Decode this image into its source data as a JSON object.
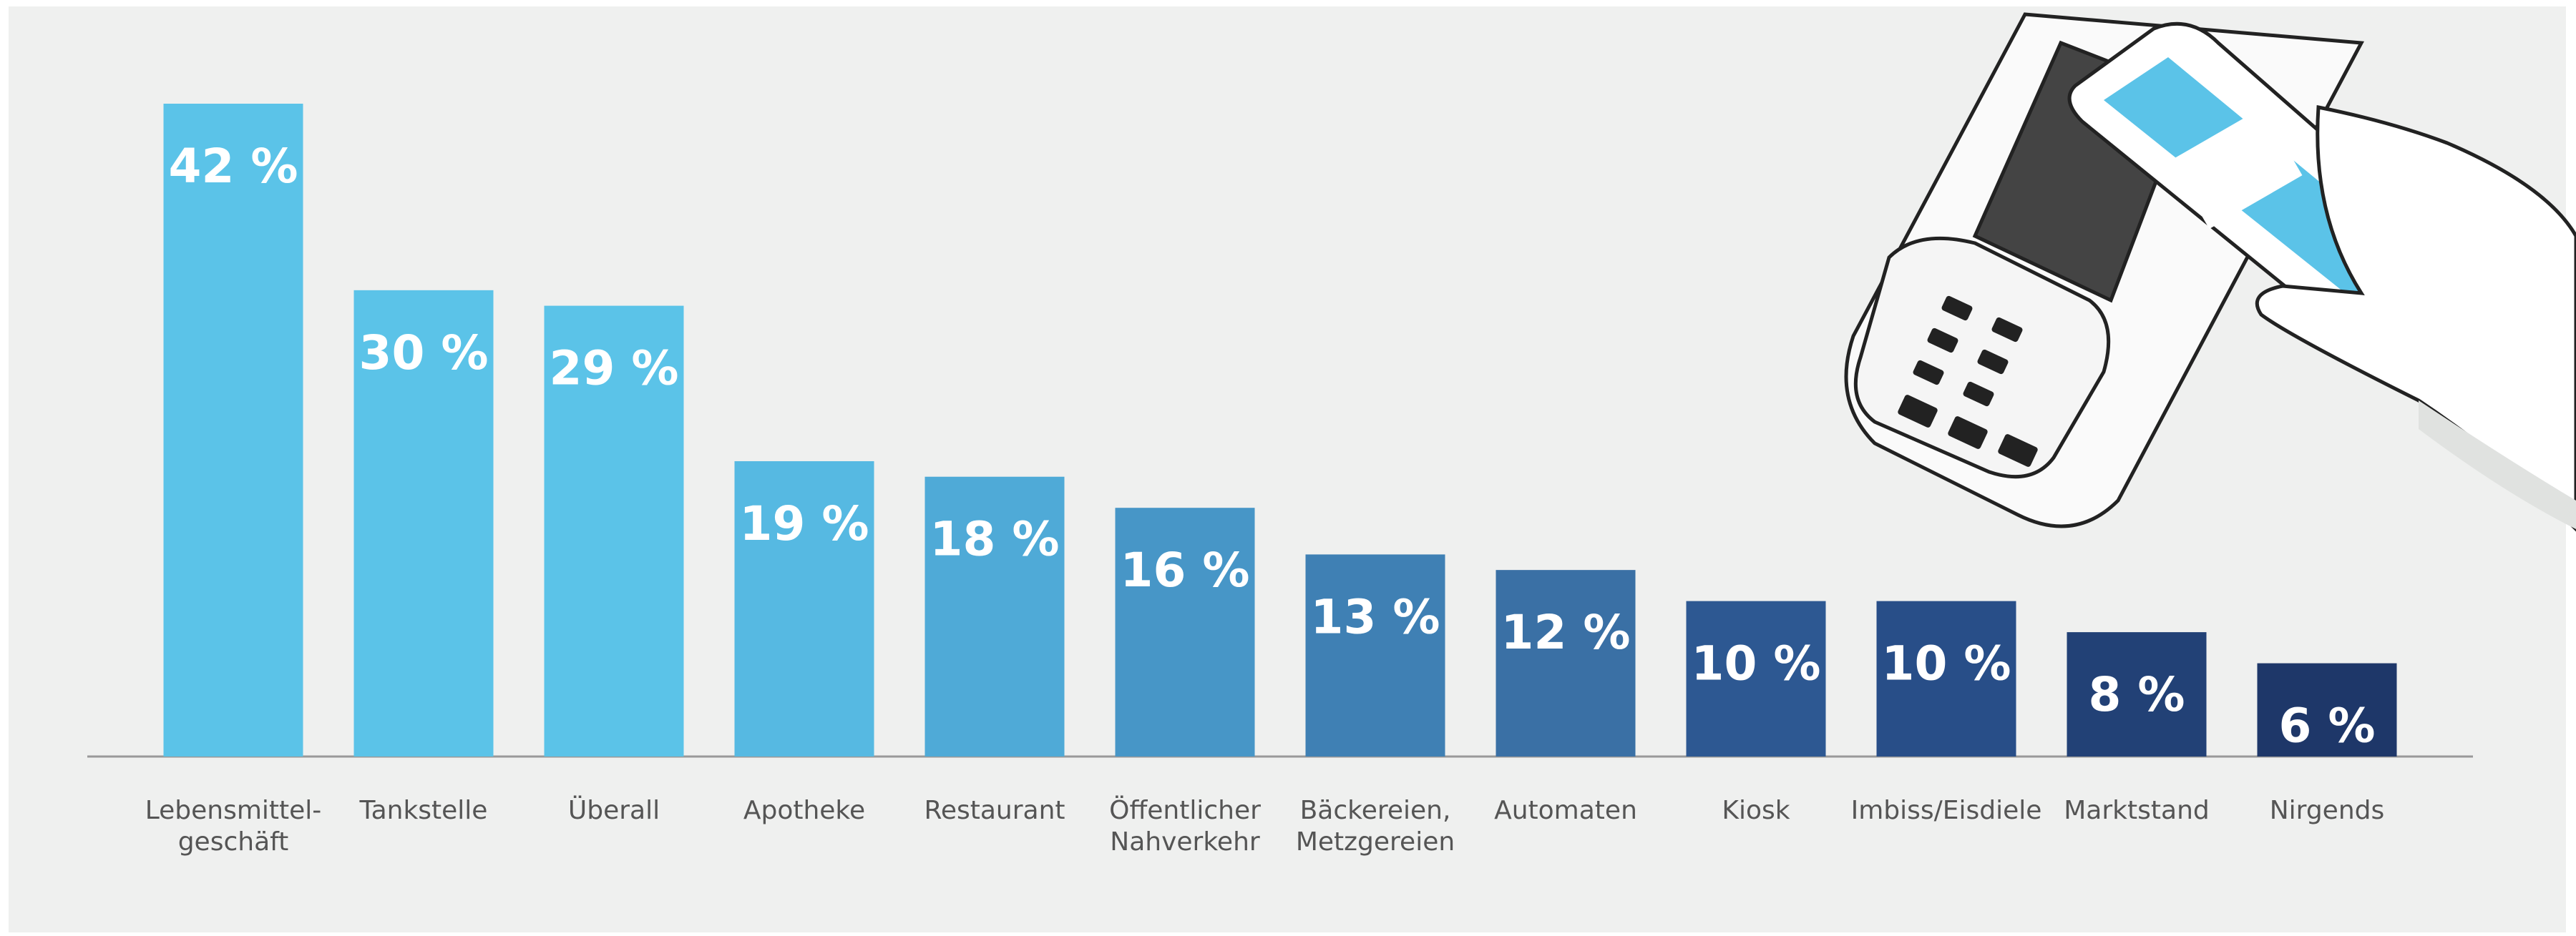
{
  "chart_data": {
    "type": "bar",
    "categories": [
      "Lebensmittel-\ngeschäft",
      "Tankstelle",
      "Überall",
      "Apotheke",
      "Restaurant",
      "Öffentlicher\nNahverkehr",
      "Bäckereien,\nMetzgereien",
      "Automaten",
      "Kiosk",
      "Imbiss/Eisdiele",
      "Marktstand",
      "Nirgends"
    ],
    "values": [
      42,
      30,
      29,
      19,
      18,
      16,
      13,
      12,
      10,
      10,
      8,
      6
    ],
    "value_labels": [
      "42 %",
      "30 %",
      "29 %",
      "19 %",
      "18 %",
      "16 %",
      "13 %",
      "12 %",
      "10 %",
      "10 %",
      "8 %",
      "6 %"
    ],
    "colors": [
      "#5bc3e8",
      "#5bc3e8",
      "#5bc3e8",
      "#56b9e2",
      "#4faad7",
      "#4796c7",
      "#3f80b4",
      "#3a70a5",
      "#2d5892",
      "#284e88",
      "#224176",
      "#1e3769"
    ],
    "ylim": [
      0,
      42
    ],
    "illustration_logo": "girocard"
  }
}
